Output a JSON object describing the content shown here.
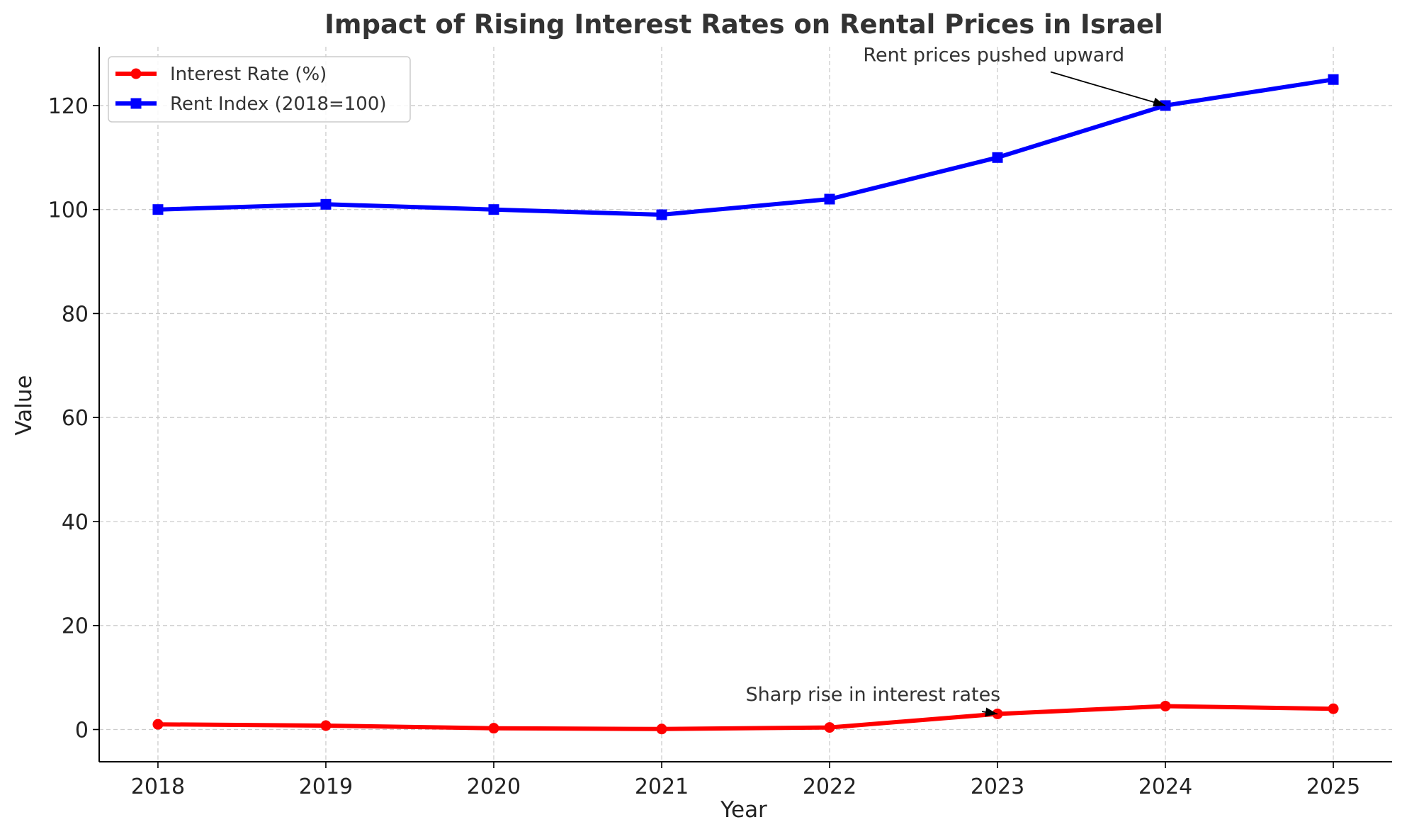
{
  "chart_data": {
    "type": "line",
    "title": "Impact of Rising Interest Rates on Rental Prices in Israel",
    "xlabel": "Year",
    "ylabel": "Value",
    "x": [
      2018,
      2019,
      2020,
      2021,
      2022,
      2023,
      2024,
      2025
    ],
    "xlim": [
      2017.65,
      2025.35
    ],
    "ylim": [
      -6.2,
      131.3
    ],
    "xticks": [
      "2018",
      "2019",
      "2020",
      "2021",
      "2022",
      "2023",
      "2024",
      "2025"
    ],
    "yticks": [
      0,
      20,
      40,
      60,
      80,
      100,
      120
    ],
    "grid": true,
    "legend_position": "top-left",
    "series": [
      {
        "name": "Interest Rate (%)",
        "color": "#ff0000",
        "marker": "circle",
        "values": [
          1.0,
          0.75,
          0.25,
          0.1,
          0.4,
          3.0,
          4.5,
          4.0
        ]
      },
      {
        "name": "Rent Index (2018=100)",
        "color": "#0000ff",
        "marker": "square",
        "values": [
          100,
          101,
          100,
          99,
          102,
          110,
          120,
          125
        ]
      }
    ],
    "annotations": [
      {
        "text": "Rent prices pushed upward",
        "point": [
          2024,
          120
        ],
        "text_position": [
          2022.2,
          128.5
        ],
        "arrow": true
      },
      {
        "text": "Sharp rise in interest rates",
        "point": [
          2023,
          3.0
        ],
        "text_position": [
          2021.5,
          5.5
        ],
        "arrow": true
      }
    ]
  }
}
